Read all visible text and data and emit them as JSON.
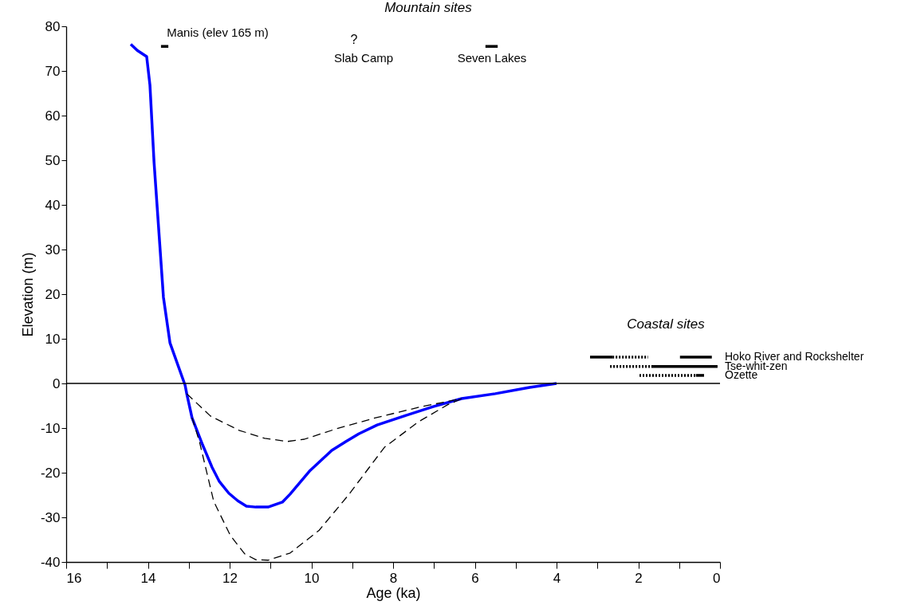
{
  "chart_data": {
    "type": "line",
    "xlabel": "Age (ka)",
    "ylabel": "Elevation (m)",
    "xlim": [
      16,
      0
    ],
    "ylim": [
      -40,
      80
    ],
    "xticks": [
      16,
      {
        "value": 15,
        "label": null
      },
      14,
      {
        "value": 13,
        "label": null
      },
      12,
      {
        "value": 11,
        "label": null
      },
      10,
      {
        "value": 9,
        "label": null
      },
      8,
      {
        "value": 7,
        "label": null
      },
      6,
      {
        "value": 5,
        "label": null
      },
      4,
      {
        "value": 3,
        "label": null
      },
      2,
      {
        "value": 1,
        "label": null
      },
      0
    ],
    "yticks": [
      -40,
      -30,
      -20,
      -10,
      0,
      10,
      20,
      30,
      40,
      50,
      60,
      70,
      80
    ],
    "marker": "none",
    "ref_lines": [
      {
        "axis": "y",
        "value": 0,
        "color": "#000000"
      }
    ],
    "annotations": [
      "Mountain sites",
      "Coastal sites",
      "Manis (elev 165 m)",
      "?",
      "Slab Camp",
      "Seven Lakes"
    ],
    "series": [
      {
        "color": "#0000ff",
        "line_style": "solid",
        "x": [
          14.42,
          14.26,
          14.03,
          13.95,
          13.85,
          13.62,
          13.46,
          13.09,
          13.05,
          12.92,
          12.66,
          12.43,
          12.25,
          12.02,
          11.8,
          11.59,
          11.36,
          11.06,
          10.71,
          10.52,
          10.03,
          9.5,
          9.15,
          8.84,
          8.39,
          7.73,
          7.02,
          6.32,
          5.5,
          4.66,
          4.0
        ],
        "values": [
          76,
          74.6,
          73.2,
          66.8,
          49.6,
          19.3,
          9.1,
          -0.4,
          -2.3,
          -7.7,
          -13.8,
          -18.8,
          -22,
          -24.6,
          -26.3,
          -27.5,
          -27.7,
          -27.7,
          -26.6,
          -24.8,
          -19.5,
          -15,
          -13,
          -11.3,
          -9.3,
          -7.3,
          -5.2,
          -3.4,
          -2.3,
          -0.9,
          0
        ]
      },
      {
        "color": "#000000",
        "line_style": "dashed",
        "x": [
          13.05,
          12.47,
          11.77,
          11.14,
          10.58,
          10.17,
          9.4,
          8.43,
          7.3,
          6.32
        ],
        "values": [
          -2.3,
          -7.3,
          -10.5,
          -12.3,
          -13,
          -12.5,
          -10.2,
          -7.7,
          -5.2,
          -3.4
        ]
      },
      {
        "color": "#000000",
        "line_style": "dashed",
        "x": [
          12.92,
          12.74,
          12.39,
          11.98,
          11.63,
          11.36,
          11.06,
          10.52,
          9.81,
          9.11,
          8.21,
          7.38,
          6.67,
          6.32
        ],
        "values": [
          -7.7,
          -13,
          -26.4,
          -34.1,
          -38.2,
          -39.5,
          -39.6,
          -38,
          -32.9,
          -25.2,
          -14.3,
          -8.6,
          -4.8,
          -3.4
        ]
      },
      {
        "color": "#000000",
        "line_style": "solid",
        "x": [
          13.68,
          13.5
        ],
        "values": [
          75.5,
          75.5
        ]
      },
      {
        "color": "#000000",
        "line_style": "solid",
        "x": [
          5.74,
          5.44
        ],
        "values": [
          75.5,
          75.5
        ]
      },
      {
        "color": "#000000",
        "line_style": "solid",
        "x": [
          3.18,
          2.63
        ],
        "values": [
          5.9,
          5.9
        ]
      },
      {
        "color": "#000000",
        "line_style": "dotted",
        "x": [
          2.63,
          1.76
        ],
        "values": [
          5.9,
          5.9
        ]
      },
      {
        "name": "Hoko River and Rockshelter",
        "color": "#000000",
        "line_style": "solid",
        "x": [
          0.98,
          0.2
        ],
        "values": [
          5.9,
          5.9
        ]
      },
      {
        "color": "#000000",
        "line_style": "dotted",
        "x": [
          2.69,
          1.68
        ],
        "values": [
          3.8,
          3.8
        ]
      },
      {
        "name": "Tse-whit-zen",
        "color": "#000000",
        "line_style": "solid",
        "x": [
          1.68,
          0.06
        ],
        "values": [
          3.8,
          3.8
        ]
      },
      {
        "name": "Ozette",
        "color": "#000000",
        "line_style": "dotted",
        "x": [
          1.97,
          0.59
        ],
        "values": [
          1.8,
          1.8
        ]
      },
      {
        "color": "#000000",
        "line_style": "solid",
        "x": [
          0.59,
          0.39
        ],
        "values": [
          1.8,
          1.8
        ]
      }
    ]
  }
}
